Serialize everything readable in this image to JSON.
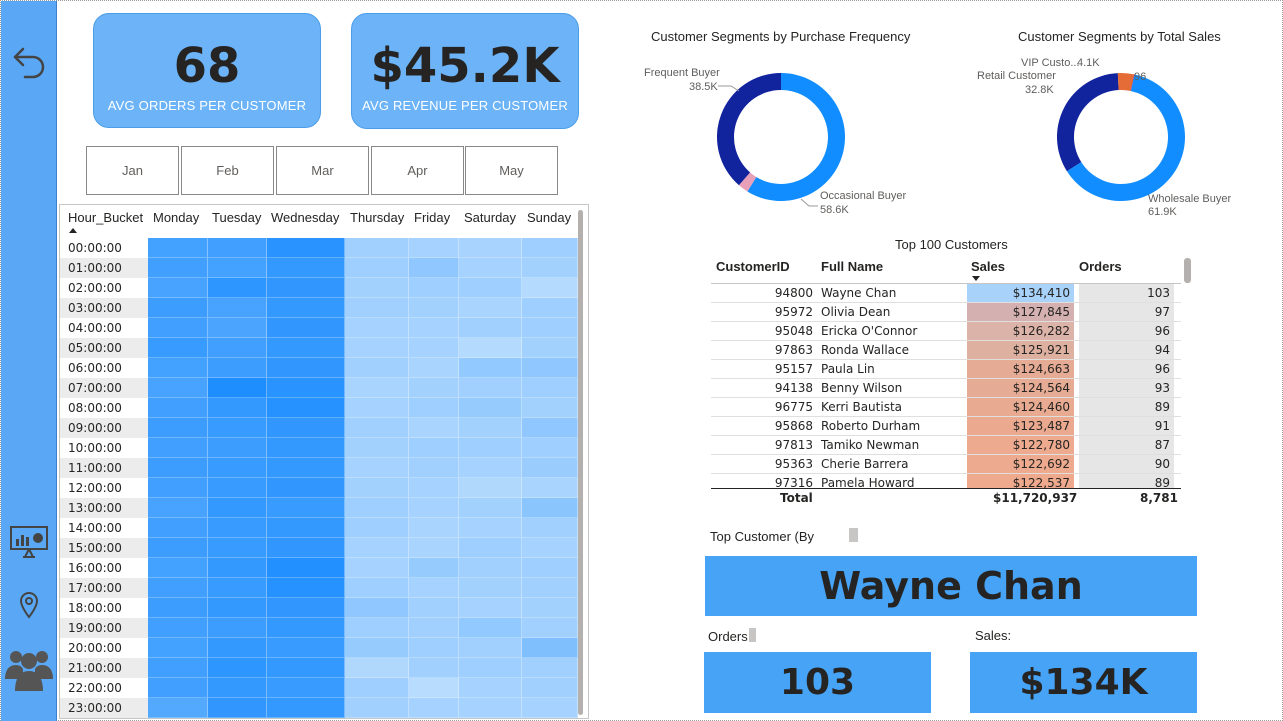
{
  "kpis": {
    "orders": {
      "value": "68",
      "label": "AVG ORDERS PER CUSTOMER"
    },
    "revenue": {
      "value": "$45.2K",
      "label": "AVG REVENUE PER CUSTOMER"
    }
  },
  "months": [
    "Jan",
    "Feb",
    "Mar",
    "Apr",
    "May"
  ],
  "matrix": {
    "columns": [
      "Hour_Bucket",
      "Monday",
      "Tuesday",
      "Wednesday",
      "Thursday",
      "Friday",
      "Saturday",
      "Sunday"
    ],
    "rows": [
      "00:00:00",
      "01:00:00",
      "02:00:00",
      "03:00:00",
      "04:00:00",
      "05:00:00",
      "06:00:00",
      "07:00:00",
      "08:00:00",
      "09:00:00",
      "10:00:00",
      "11:00:00",
      "12:00:00",
      "13:00:00",
      "14:00:00",
      "15:00:00",
      "16:00:00",
      "17:00:00",
      "18:00:00",
      "19:00:00",
      "20:00:00",
      "21:00:00",
      "22:00:00",
      "23:00:00"
    ],
    "intensity": [
      [
        0.78,
        0.8,
        0.92,
        0.28,
        0.26,
        0.25,
        0.3
      ],
      [
        0.8,
        0.78,
        0.86,
        0.3,
        0.38,
        0.26,
        0.27
      ],
      [
        0.76,
        0.9,
        0.88,
        0.27,
        0.3,
        0.3,
        0.18
      ],
      [
        0.82,
        0.76,
        0.86,
        0.28,
        0.27,
        0.24,
        0.3
      ],
      [
        0.8,
        0.74,
        0.88,
        0.26,
        0.26,
        0.28,
        0.29
      ],
      [
        0.84,
        0.8,
        0.86,
        0.26,
        0.26,
        0.18,
        0.27
      ],
      [
        0.78,
        0.82,
        0.88,
        0.28,
        0.24,
        0.36,
        0.38
      ],
      [
        0.76,
        0.98,
        0.92,
        0.24,
        0.27,
        0.28,
        0.3
      ],
      [
        0.8,
        0.86,
        0.94,
        0.26,
        0.3,
        0.34,
        0.27
      ],
      [
        0.82,
        0.84,
        0.88,
        0.28,
        0.24,
        0.27,
        0.38
      ],
      [
        0.8,
        0.82,
        0.86,
        0.27,
        0.3,
        0.3,
        0.3
      ],
      [
        0.82,
        0.84,
        0.86,
        0.26,
        0.28,
        0.26,
        0.32
      ],
      [
        0.8,
        0.84,
        0.88,
        0.27,
        0.26,
        0.2,
        0.24
      ],
      [
        0.76,
        0.86,
        0.84,
        0.3,
        0.26,
        0.27,
        0.4
      ],
      [
        0.8,
        0.84,
        0.86,
        0.3,
        0.24,
        0.26,
        0.28
      ],
      [
        0.82,
        0.84,
        0.88,
        0.26,
        0.24,
        0.3,
        0.26
      ],
      [
        0.78,
        0.86,
        0.96,
        0.26,
        0.34,
        0.28,
        0.3
      ],
      [
        0.8,
        0.84,
        0.94,
        0.3,
        0.26,
        0.27,
        0.28
      ],
      [
        0.82,
        0.86,
        0.88,
        0.38,
        0.28,
        0.26,
        0.27
      ],
      [
        0.8,
        0.82,
        0.86,
        0.3,
        0.28,
        0.36,
        0.28
      ],
      [
        0.78,
        0.86,
        0.84,
        0.34,
        0.3,
        0.28,
        0.46
      ],
      [
        0.8,
        0.9,
        0.86,
        0.2,
        0.28,
        0.3,
        0.28
      ],
      [
        0.8,
        0.86,
        0.84,
        0.3,
        0.16,
        0.26,
        0.28
      ],
      [
        0.7,
        0.88,
        0.86,
        0.28,
        0.26,
        0.26,
        0.26
      ]
    ]
  },
  "donut_frequency": {
    "title": "Customer Segments by Purchase Frequency",
    "slices": [
      {
        "name": "Frequent Buyer",
        "value": "38.5K",
        "share": 0.386,
        "color": "#12239e"
      },
      {
        "name": "Occasional Buyer",
        "value": "58.6K",
        "share": 0.588,
        "color": "#118dff"
      },
      {
        "name": "",
        "value": "",
        "share": 0.026,
        "color": "#e8a0b8"
      }
    ]
  },
  "donut_sales": {
    "title": "Customer Segments by Total Sales",
    "slices": [
      {
        "name": "Retail Customer",
        "value": "32.8K",
        "share": 0.332,
        "color": "#12239e"
      },
      {
        "name": "VIP Custo...",
        "value": "4.1K",
        "share": 0.041,
        "color": "#e66c37"
      },
      {
        "name": "",
        "value": "96",
        "share": 0.001,
        "color": "#6b007b"
      },
      {
        "name": "Wholesale Buyer",
        "value": "61.9K",
        "share": 0.626,
        "color": "#118dff"
      }
    ]
  },
  "table": {
    "title": "Top 100 Customers",
    "headers": {
      "id": "CustomerID",
      "name": "Full Name",
      "sales": "Sales",
      "orders": "Orders"
    },
    "rows": [
      {
        "id": "94800",
        "name": "Wayne Chan",
        "sales": "$134,410",
        "orders": "103",
        "color": "#a8d2f9"
      },
      {
        "id": "95972",
        "name": "Olivia Dean",
        "sales": "$127,845",
        "orders": "97",
        "color": "#d4b1b0"
      },
      {
        "id": "95048",
        "name": "Ericka O'Connor",
        "sales": "$126,282",
        "orders": "96",
        "color": "#dcb3a8"
      },
      {
        "id": "97863",
        "name": "Ronda Wallace",
        "sales": "$125,921",
        "orders": "94",
        "color": "#deb0a0"
      },
      {
        "id": "95157",
        "name": "Paula Lin",
        "sales": "$124,663",
        "orders": "96",
        "color": "#e6ab94"
      },
      {
        "id": "94138",
        "name": "Benny Wilson",
        "sales": "$124,564",
        "orders": "93",
        "color": "#e6ab94"
      },
      {
        "id": "96775",
        "name": "Kerri Bautista",
        "sales": "$124,460",
        "orders": "89",
        "color": "#e8ab92"
      },
      {
        "id": "95868",
        "name": "Roberto Durham",
        "sales": "$123,487",
        "orders": "91",
        "color": "#ebaa90"
      },
      {
        "id": "97813",
        "name": "Tamiko Newman",
        "sales": "$122,780",
        "orders": "87",
        "color": "#eeaa8e"
      },
      {
        "id": "95363",
        "name": "Cherie Barrera",
        "sales": "$122,692",
        "orders": "90",
        "color": "#eeaa8e"
      },
      {
        "id": "97316",
        "name": "Pamela Howard",
        "sales": "$122,537",
        "orders": "89",
        "color": "#efaa8d"
      }
    ],
    "total": {
      "label": "Total",
      "sales": "$11,720,937",
      "orders": "8,781"
    }
  },
  "top_customer": {
    "label": "Top Customer (By",
    "name": "Wayne Chan",
    "orders_label": "Orders",
    "orders_value": "103",
    "sales_label": "Sales:",
    "sales_value": "$134K"
  }
}
